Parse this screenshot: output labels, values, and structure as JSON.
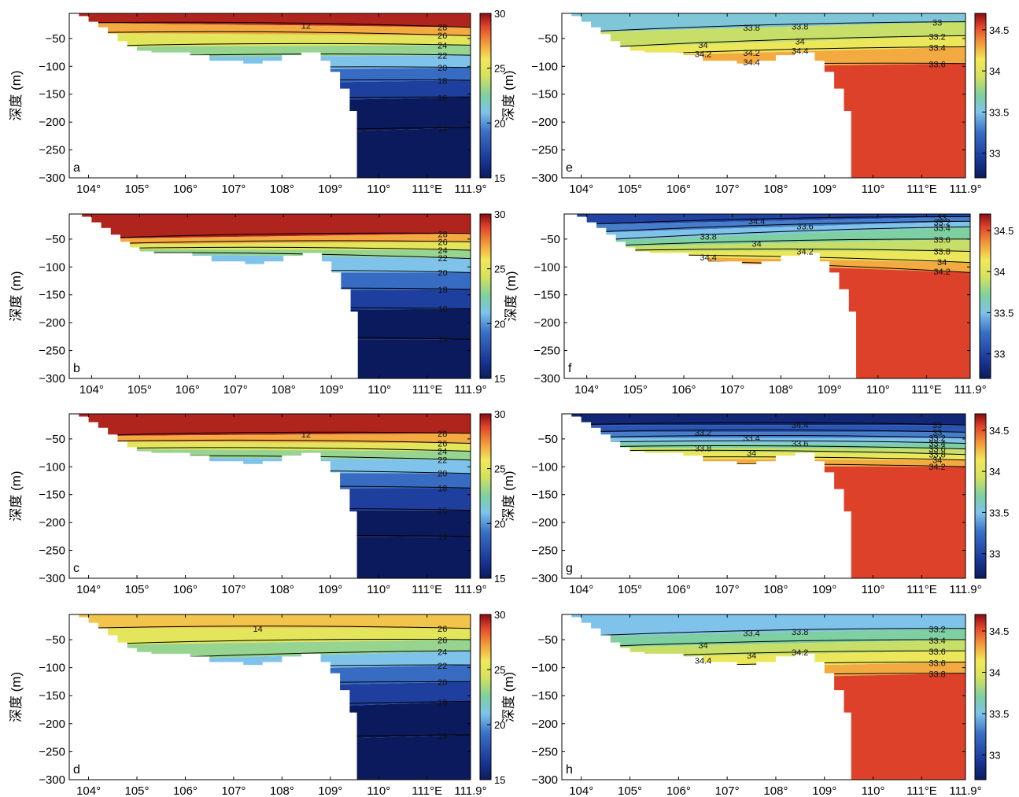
{
  "chart_data": [
    {
      "type": "heatmap",
      "panel": "a",
      "variable": "temperature",
      "ylabel": "深度 (m)",
      "x_ticks": [
        "104°",
        "105°",
        "106°",
        "107°",
        "108°",
        "109°",
        "110°",
        "111°E",
        "111.9°"
      ],
      "y_ticks": [
        "−50",
        "−100",
        "−150",
        "−200",
        "−250",
        "−300"
      ],
      "x_range": [
        103.6,
        111.9
      ],
      "ylim": [
        -300,
        -5
      ],
      "colorbar": {
        "min": 15,
        "max": 30,
        "ticks": [
          "15",
          "20",
          "25",
          "30"
        ]
      },
      "surface_value": 29.5,
      "depth_bottom_value": 14.5,
      "contour_labels": [
        "28",
        "26",
        "24",
        "22",
        "20",
        "18",
        "16",
        "14",
        "12"
      ],
      "isotherms": [
        {
          "level": 28,
          "depth_west": -22,
          "depth_east": -30
        },
        {
          "level": 26,
          "depth_west": -40,
          "depth_east": -45
        },
        {
          "level": 24,
          "depth_west": -65,
          "depth_east": -62
        },
        {
          "level": 22,
          "depth_west": -85,
          "depth_east": -80
        },
        {
          "level": 20,
          "depth_west": -110,
          "depth_east": -102
        },
        {
          "level": 18,
          "depth_west": -135,
          "depth_east": -125
        },
        {
          "level": 16,
          "depth_west": -170,
          "depth_east": -155
        },
        {
          "level": 14,
          "depth_west": -230,
          "depth_east": -210
        }
      ]
    },
    {
      "type": "heatmap",
      "panel": "b",
      "variable": "temperature",
      "ylabel": "深度 (m)",
      "x_ticks": [
        "104°",
        "105°",
        "106°",
        "107°",
        "108°",
        "109°",
        "110°",
        "111°E",
        "111.9°"
      ],
      "y_ticks": [
        "−50",
        "−100",
        "−150",
        "−200",
        "−250",
        "−300"
      ],
      "x_range": [
        103.6,
        111.9
      ],
      "ylim": [
        -300,
        -5
      ],
      "colorbar": {
        "min": 15,
        "max": 30,
        "ticks": [
          "15",
          "20",
          "25",
          "30"
        ]
      },
      "surface_value": 29.5,
      "depth_bottom_value": 14.5,
      "contour_labels": [
        "28",
        "26",
        "24",
        "22",
        "20",
        "18",
        "16",
        "14"
      ],
      "isotherms": [
        {
          "level": 28,
          "depth_west": -50,
          "depth_east": -40
        },
        {
          "level": 26,
          "depth_west": -60,
          "depth_east": -55
        },
        {
          "level": 24,
          "depth_west": -68,
          "depth_east": -70
        },
        {
          "level": 22,
          "depth_west": -75,
          "depth_east": -85
        },
        {
          "level": 20,
          "depth_west": -110,
          "depth_east": -110
        },
        {
          "level": 18,
          "depth_west": -145,
          "depth_east": -140
        },
        {
          "level": 16,
          "depth_west": -180,
          "depth_east": -175
        },
        {
          "level": 14,
          "depth_west": -230,
          "depth_east": -230
        }
      ]
    },
    {
      "type": "heatmap",
      "panel": "c",
      "variable": "temperature",
      "ylabel": "深度 (m)",
      "x_ticks": [
        "104°",
        "105°",
        "106°",
        "107°",
        "108°",
        "109°",
        "110°",
        "111°E",
        "111.9°"
      ],
      "y_ticks": [
        "−50",
        "−100",
        "−150",
        "−200",
        "−250",
        "−300"
      ],
      "x_range": [
        103.6,
        111.9
      ],
      "ylim": [
        -300,
        -5
      ],
      "colorbar": {
        "min": 15,
        "max": 30,
        "ticks": [
          "15",
          "20",
          "25",
          "30"
        ]
      },
      "surface_value": 29.5,
      "depth_bottom_value": 14.5,
      "contour_labels": [
        "28",
        "26",
        "24",
        "22",
        "20",
        "18",
        "16",
        "14",
        "12"
      ],
      "isotherms": [
        {
          "level": 28,
          "depth_west": -45,
          "depth_east": -40
        },
        {
          "level": 26,
          "depth_west": -55,
          "depth_east": -58
        },
        {
          "level": 24,
          "depth_west": -68,
          "depth_east": -72
        },
        {
          "level": 22,
          "depth_west": -82,
          "depth_east": -88
        },
        {
          "level": 20,
          "depth_west": -110,
          "depth_east": -112
        },
        {
          "level": 18,
          "depth_west": -140,
          "depth_east": -138
        },
        {
          "level": 16,
          "depth_west": -180,
          "depth_east": -178
        },
        {
          "level": 14,
          "depth_west": -230,
          "depth_east": -225
        }
      ]
    },
    {
      "type": "heatmap",
      "panel": "d",
      "variable": "temperature",
      "ylabel": "深度 (m)",
      "x_ticks": [
        "104°",
        "105°",
        "106°",
        "107°",
        "108°",
        "109°",
        "110°",
        "111°E",
        "111.9°"
      ],
      "y_ticks": [
        "−50",
        "−100",
        "−150",
        "−200",
        "−250",
        "−300"
      ],
      "x_range": [
        103.6,
        111.9
      ],
      "ylim": [
        -300,
        -5
      ],
      "colorbar": {
        "min": 15,
        "max": 30,
        "ticks": [
          "15",
          "20",
          "25",
          "30"
        ]
      },
      "surface_value": 26.5,
      "depth_bottom_value": 14.5,
      "contour_labels": [
        "26",
        "26",
        "24",
        "22",
        "20",
        "18",
        "16",
        "14"
      ],
      "isotherms": [
        {
          "level": 26,
          "depth_west": -30,
          "depth_east": -30
        },
        {
          "level": 24,
          "depth_west": -60,
          "depth_east": -50
        },
        {
          "level": 22,
          "depth_west": -90,
          "depth_east": -70
        },
        {
          "level": 20,
          "depth_west": -110,
          "depth_east": -95
        },
        {
          "level": 18,
          "depth_west": -140,
          "depth_east": -125
        },
        {
          "level": 16,
          "depth_west": -185,
          "depth_east": -160
        },
        {
          "level": 14,
          "depth_west": -240,
          "depth_east": -220
        }
      ]
    },
    {
      "type": "heatmap",
      "panel": "e",
      "variable": "salinity",
      "ylabel": "深度 (m)",
      "x_ticks": [
        "104°",
        "105°",
        "106°",
        "107°",
        "108°",
        "109°",
        "110°",
        "111°E",
        "111.9°"
      ],
      "y_ticks": [
        "−50",
        "−100",
        "−150",
        "−200",
        "−250",
        "−300"
      ],
      "x_range": [
        103.6,
        111.9
      ],
      "ylim": [
        -300,
        -5
      ],
      "colorbar": {
        "min": 32.7,
        "max": 34.7,
        "ticks": [
          "33",
          "33.5",
          "34",
          "34.5"
        ]
      },
      "surface_value": 33.55,
      "depth_bottom_value": 34.55,
      "contour_labels": [
        "33",
        "33.2",
        "33.4",
        "33.6",
        "33.8",
        "34",
        "34.2",
        "34.4",
        "33.8",
        "34",
        "34.2",
        "34.4"
      ],
      "isotherms": [
        {
          "level": 33.8,
          "depth_west": -40,
          "depth_east": -20
        },
        {
          "level": 34,
          "depth_west": -70,
          "depth_east": -45
        },
        {
          "level": 34.2,
          "depth_west": -85,
          "depth_east": -65
        },
        {
          "level": 34.4,
          "depth_west": -105,
          "depth_east": -95
        }
      ]
    },
    {
      "type": "heatmap",
      "panel": "f",
      "variable": "salinity",
      "ylabel": "深度 (m)",
      "x_ticks": [
        "104°",
        "105°",
        "106°",
        "107°",
        "108°",
        "109°",
        "110°",
        "111°E",
        "111.9°"
      ],
      "y_ticks": [
        "−50",
        "−100",
        "−150",
        "−200",
        "−250",
        "−300"
      ],
      "x_range": [
        103.6,
        111.9
      ],
      "ylim": [
        -300,
        -5
      ],
      "colorbar": {
        "min": 32.7,
        "max": 34.7,
        "ticks": [
          "33",
          "33.5",
          "34",
          "34.5"
        ]
      },
      "surface_value": 33.0,
      "depth_bottom_value": 34.55,
      "contour_labels": [
        "33",
        "33.2",
        "33.4",
        "33.6",
        "33.8",
        "34",
        "34.2",
        "34.4",
        "33.6",
        "33.8",
        "34",
        "34.2",
        "34.4"
      ],
      "isotherms": [
        {
          "level": 33.2,
          "depth_west": -25,
          "depth_east": -10
        },
        {
          "level": 33.4,
          "depth_west": -40,
          "depth_east": -18
        },
        {
          "level": 33.6,
          "depth_west": -55,
          "depth_east": -28
        },
        {
          "level": 33.8,
          "depth_west": -65,
          "depth_east": -50
        },
        {
          "level": 34,
          "depth_west": -72,
          "depth_east": -72
        },
        {
          "level": 34.2,
          "depth_west": -78,
          "depth_east": -92
        },
        {
          "level": 34.4,
          "depth_west": -85,
          "depth_east": -110
        }
      ]
    },
    {
      "type": "heatmap",
      "panel": "g",
      "variable": "salinity",
      "ylabel": "深度 (m)",
      "x_ticks": [
        "104°",
        "105°",
        "106°",
        "107°",
        "108°",
        "109°",
        "110°",
        "111°E",
        "111.9°"
      ],
      "y_ticks": [
        "−50",
        "−100",
        "−150",
        "−200",
        "−250",
        "−300"
      ],
      "x_range": [
        103.6,
        111.9
      ],
      "ylim": [
        -300,
        -5
      ],
      "colorbar": {
        "min": 32.7,
        "max": 34.7,
        "ticks": [
          "33",
          "33.5",
          "34",
          "34.5"
        ]
      },
      "surface_value": 32.8,
      "depth_bottom_value": 34.55,
      "contour_labels": [
        "33",
        "33",
        "33.2",
        "33.4",
        "33.6",
        "33.8",
        "34",
        "34.2",
        "34.4",
        "33.2",
        "33.4",
        "33.6",
        "33.8",
        "34"
      ],
      "isotherms": [
        {
          "level": 33,
          "depth_west": -25,
          "depth_east": -25
        },
        {
          "level": 33.2,
          "depth_west": -38,
          "depth_east": -38
        },
        {
          "level": 33.4,
          "depth_west": -48,
          "depth_east": -48
        },
        {
          "level": 33.6,
          "depth_west": -57,
          "depth_east": -58
        },
        {
          "level": 33.8,
          "depth_west": -65,
          "depth_east": -68
        },
        {
          "level": 34,
          "depth_west": -72,
          "depth_east": -78
        },
        {
          "level": 34.2,
          "depth_west": -85,
          "depth_east": -88
        },
        {
          "level": 34.4,
          "depth_west": -98,
          "depth_east": -100
        }
      ]
    },
    {
      "type": "heatmap",
      "panel": "h",
      "variable": "salinity",
      "ylabel": "深度 (m)",
      "x_ticks": [
        "104°",
        "105°",
        "106°",
        "107°",
        "108°",
        "109°",
        "110°",
        "111°E",
        "111.9°"
      ],
      "y_ticks": [
        "−50",
        "−100",
        "−150",
        "−200",
        "−250",
        "−300"
      ],
      "x_range": [
        103.6,
        111.9
      ],
      "ylim": [
        -300,
        -5
      ],
      "colorbar": {
        "min": 32.7,
        "max": 34.7,
        "ticks": [
          "33",
          "33.5",
          "34",
          "34.5"
        ]
      },
      "surface_value": 33.5,
      "depth_bottom_value": 34.55,
      "contour_labels": [
        "33.2",
        "33.4",
        "33.6",
        "33.6",
        "33.8",
        "33.8",
        "34",
        "34",
        "34.2",
        "34.4",
        "33.4"
      ],
      "isotherms": [
        {
          "level": 33.6,
          "depth_west": -45,
          "depth_east": -30
        },
        {
          "level": 33.8,
          "depth_west": -65,
          "depth_east": -50
        },
        {
          "level": 34,
          "depth_west": -85,
          "depth_east": -70
        },
        {
          "level": 34.2,
          "depth_west": -105,
          "depth_east": -90
        },
        {
          "level": 34.4,
          "depth_west": -125,
          "depth_east": -110
        }
      ]
    }
  ]
}
